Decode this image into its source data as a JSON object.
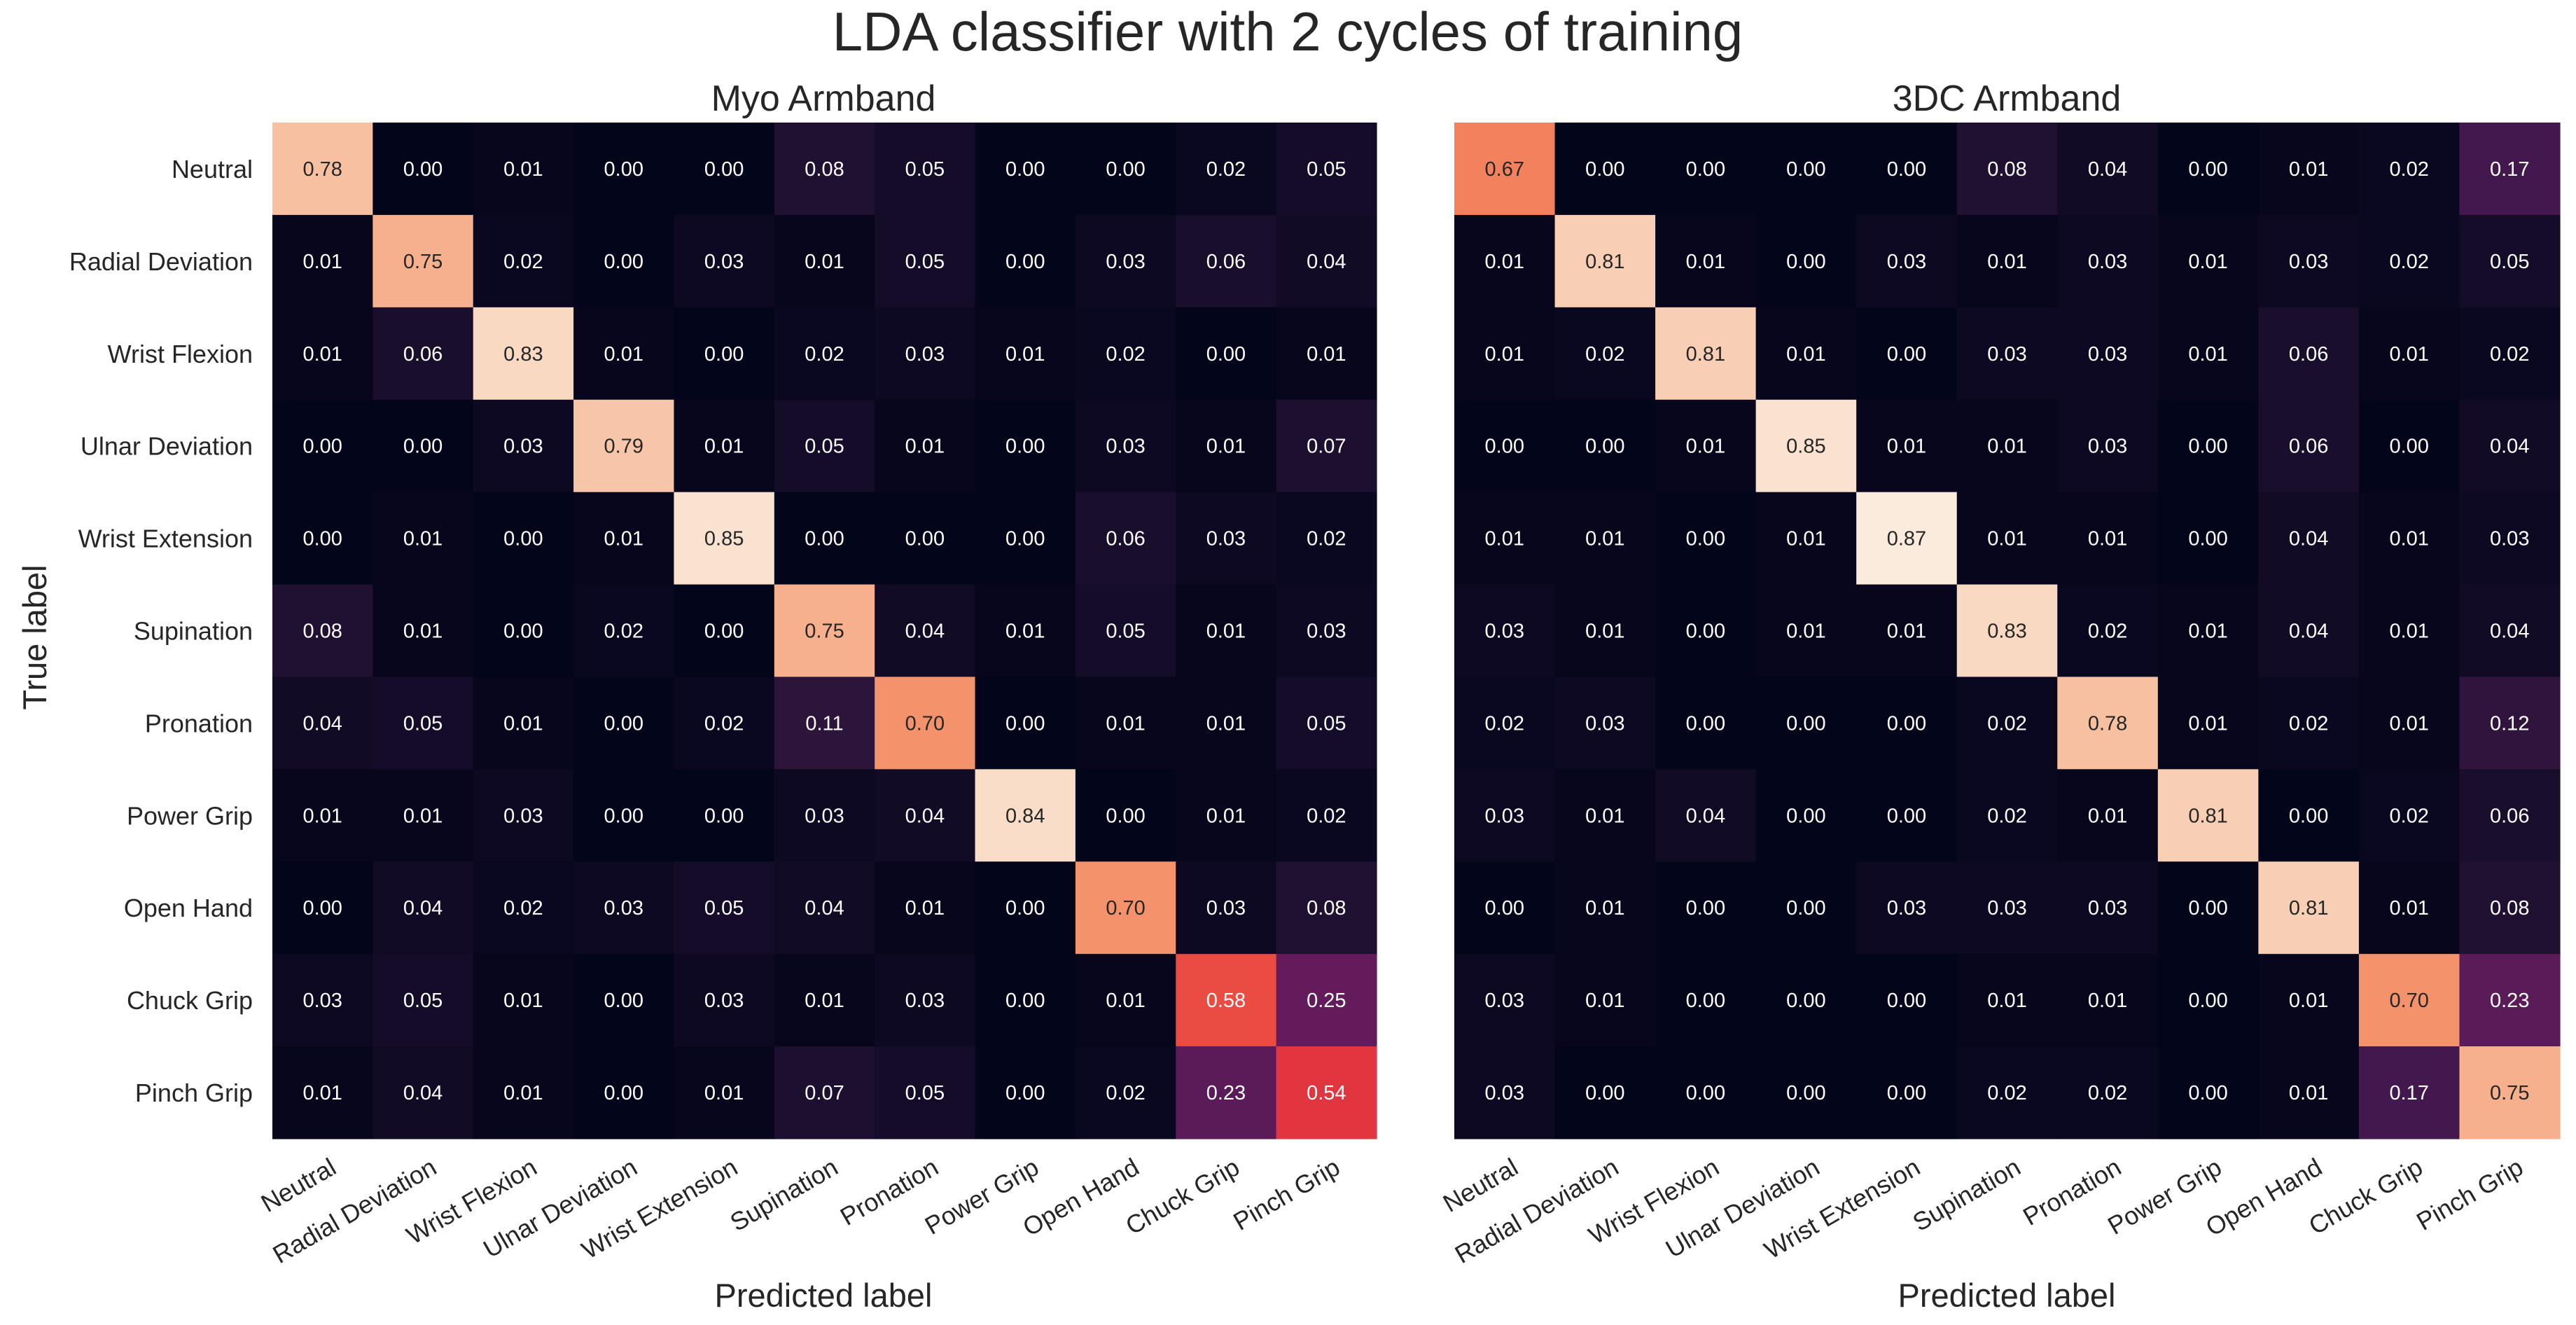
{
  "figure": {
    "suptitle": "LDA classifier with 2 cycles of training"
  },
  "chart_data": [
    {
      "type": "heatmap",
      "title": "Myo Armband",
      "xlabel": "Predicted label",
      "ylabel": "True label",
      "categories": [
        "Neutral",
        "Radial Deviation",
        "Wrist Flexion",
        "Ulnar Deviation",
        "Wrist Extension",
        "Supination",
        "Pronation",
        "Power Grip",
        "Open Hand",
        "Chuck Grip",
        "Pinch Grip"
      ],
      "color_range": [
        0,
        0.87
      ],
      "matrix": [
        [
          0.78,
          0.0,
          0.01,
          0.0,
          0.0,
          0.08,
          0.05,
          0.0,
          0.0,
          0.02,
          0.05
        ],
        [
          0.01,
          0.75,
          0.02,
          0.0,
          0.03,
          0.01,
          0.05,
          0.0,
          0.03,
          0.06,
          0.04
        ],
        [
          0.01,
          0.06,
          0.83,
          0.01,
          0.0,
          0.02,
          0.03,
          0.01,
          0.02,
          0.0,
          0.01
        ],
        [
          0.0,
          0.0,
          0.03,
          0.79,
          0.01,
          0.05,
          0.01,
          0.0,
          0.03,
          0.01,
          0.07
        ],
        [
          0.0,
          0.01,
          0.0,
          0.01,
          0.85,
          0.0,
          0.0,
          0.0,
          0.06,
          0.03,
          0.02
        ],
        [
          0.08,
          0.01,
          0.0,
          0.02,
          0.0,
          0.75,
          0.04,
          0.01,
          0.05,
          0.01,
          0.03
        ],
        [
          0.04,
          0.05,
          0.01,
          0.0,
          0.02,
          0.11,
          0.7,
          0.0,
          0.01,
          0.01,
          0.05
        ],
        [
          0.01,
          0.01,
          0.03,
          0.0,
          0.0,
          0.03,
          0.04,
          0.84,
          0.0,
          0.01,
          0.02
        ],
        [
          0.0,
          0.04,
          0.02,
          0.03,
          0.05,
          0.04,
          0.01,
          0.0,
          0.7,
          0.03,
          0.08
        ],
        [
          0.03,
          0.05,
          0.01,
          0.0,
          0.03,
          0.01,
          0.03,
          0.0,
          0.01,
          0.58,
          0.25
        ],
        [
          0.01,
          0.04,
          0.01,
          0.0,
          0.01,
          0.07,
          0.05,
          0.0,
          0.02,
          0.23,
          0.54
        ]
      ]
    },
    {
      "type": "heatmap",
      "title": "3DC Armband",
      "xlabel": "Predicted label",
      "ylabel": "",
      "categories": [
        "Neutral",
        "Radial Deviation",
        "Wrist Flexion",
        "Ulnar Deviation",
        "Wrist Extension",
        "Supination",
        "Pronation",
        "Power Grip",
        "Open Hand",
        "Chuck Grip",
        "Pinch Grip"
      ],
      "color_range": [
        0,
        0.87
      ],
      "matrix": [
        [
          0.67,
          0.0,
          0.0,
          0.0,
          0.0,
          0.08,
          0.04,
          0.0,
          0.01,
          0.02,
          0.17
        ],
        [
          0.01,
          0.81,
          0.01,
          0.0,
          0.03,
          0.01,
          0.03,
          0.01,
          0.03,
          0.02,
          0.05
        ],
        [
          0.01,
          0.02,
          0.81,
          0.01,
          0.0,
          0.03,
          0.03,
          0.01,
          0.06,
          0.01,
          0.02
        ],
        [
          0.0,
          0.0,
          0.01,
          0.85,
          0.01,
          0.01,
          0.03,
          0.0,
          0.06,
          0.0,
          0.04
        ],
        [
          0.01,
          0.01,
          0.0,
          0.01,
          0.87,
          0.01,
          0.01,
          0.0,
          0.04,
          0.01,
          0.03
        ],
        [
          0.03,
          0.01,
          0.0,
          0.01,
          0.01,
          0.83,
          0.02,
          0.01,
          0.04,
          0.01,
          0.04
        ],
        [
          0.02,
          0.03,
          0.0,
          0.0,
          0.0,
          0.02,
          0.78,
          0.01,
          0.02,
          0.01,
          0.12
        ],
        [
          0.03,
          0.01,
          0.04,
          0.0,
          0.0,
          0.02,
          0.01,
          0.81,
          0.0,
          0.02,
          0.06
        ],
        [
          0.0,
          0.01,
          0.0,
          0.0,
          0.03,
          0.03,
          0.03,
          0.0,
          0.81,
          0.01,
          0.08
        ],
        [
          0.03,
          0.01,
          0.0,
          0.0,
          0.0,
          0.01,
          0.01,
          0.0,
          0.01,
          0.7,
          0.23
        ],
        [
          0.03,
          0.0,
          0.0,
          0.0,
          0.0,
          0.02,
          0.02,
          0.0,
          0.01,
          0.17,
          0.75
        ]
      ]
    }
  ]
}
